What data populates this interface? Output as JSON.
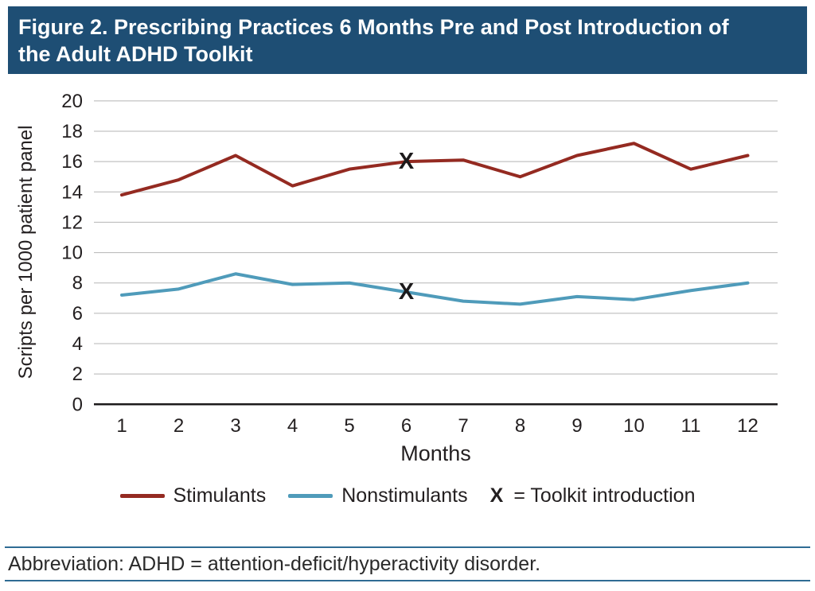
{
  "title": {
    "lines": [
      "Figure 2. Prescribing Practices 6 Months Pre and Post Introduction of",
      "the Adult ADHD Toolkit"
    ]
  },
  "chart_data": {
    "type": "line",
    "xlabel": "Months",
    "ylabel": "Scripts per 1000 patient panel",
    "x": [
      1,
      2,
      3,
      4,
      5,
      6,
      7,
      8,
      9,
      10,
      11,
      12
    ],
    "ylim": [
      0,
      20
    ],
    "ytick_step": 2,
    "grid": "horizontal",
    "legend_position": "bottom",
    "series": [
      {
        "name": "Stimulants",
        "color": "#942a21",
        "values": [
          13.8,
          14.8,
          16.4,
          14.4,
          15.5,
          16.0,
          16.1,
          15.0,
          16.4,
          17.2,
          15.5,
          16.4
        ]
      },
      {
        "name": "Nonstimulants",
        "color": "#4f9bba",
        "values": [
          7.2,
          7.6,
          8.6,
          7.9,
          8.0,
          7.4,
          6.8,
          6.6,
          7.1,
          6.9,
          7.5,
          8.0
        ]
      }
    ],
    "annotation": {
      "marker": "X",
      "meaning": "Toolkit introduction",
      "month": 6
    }
  },
  "legend": {
    "marker_symbol": "X",
    "marker_text": "= Toolkit introduction"
  },
  "footer": {
    "abbreviation": "Abbreviation: ADHD = attention-deficit/hyperactivity disorder."
  },
  "colors": {
    "title_bar": "#1e4e74",
    "stimulants": "#942a21",
    "nonstimulants": "#4f9bba",
    "grid": "#b5b5b5",
    "axis": "#1c1a1b",
    "footer_rule": "#2f6c94"
  }
}
